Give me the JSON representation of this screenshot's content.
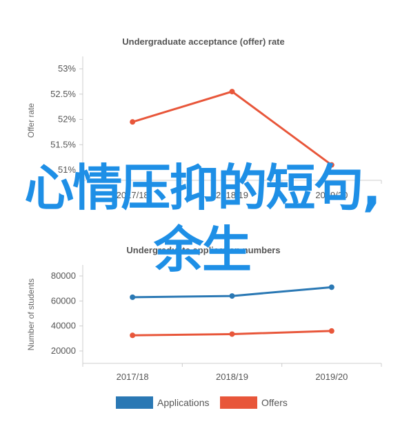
{
  "overlay_text": "心情压抑的短句,余生",
  "colors": {
    "applications": "#2a78b4",
    "offers": "#e8563a",
    "overlay": "#1e8fe6",
    "axis": "#cccccc",
    "text": "#555555"
  },
  "chart_data": [
    {
      "type": "line",
      "title": "Undergraduate acceptance (offer) rate",
      "xlabel": "",
      "ylabel": "Offer rate",
      "categories": [
        "2017/18",
        "2018/19",
        "2019/20"
      ],
      "y_ticks": [
        "53%",
        "52.5%",
        "52%",
        "51.5%",
        "51%"
      ],
      "ylim": [
        51,
        53
      ],
      "grid": false,
      "series": [
        {
          "values": [
            51.95,
            52.55,
            51.1
          ],
          "color": "#e8563a"
        }
      ]
    },
    {
      "type": "line",
      "title": "Undergraduate application numbers",
      "xlabel": "",
      "ylabel": "Number of students",
      "categories": [
        "2017/18",
        "2018/19",
        "2019/20"
      ],
      "y_ticks": [
        "80000",
        "60000",
        "40000",
        "20000"
      ],
      "ylim": [
        20000,
        80000
      ],
      "grid": false,
      "legend_position": "bottom",
      "series": [
        {
          "name": "Applications",
          "values": [
            63000,
            64000,
            71000
          ],
          "color": "#2a78b4"
        },
        {
          "name": "Offers",
          "values": [
            32500,
            33500,
            36000
          ],
          "color": "#e8563a"
        }
      ]
    }
  ]
}
